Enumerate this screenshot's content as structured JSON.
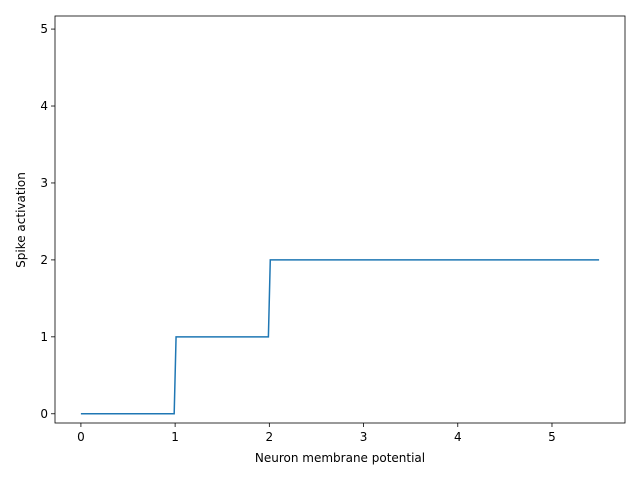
{
  "chart_data": {
    "type": "line",
    "x_label": "Neuron membrane potential",
    "y_label": "Spike activation",
    "x": [
      0,
      0.99,
      1.01,
      1.99,
      2.01,
      5.5
    ],
    "series": [
      {
        "color": "#1f77b4",
        "values": [
          0,
          0,
          1,
          1,
          2,
          2
        ]
      }
    ],
    "xlim": [
      -0.275,
      5.775
    ],
    "ylim": [
      -0.12,
      5.17
    ],
    "xticks": [
      0,
      1,
      2,
      3,
      4,
      5
    ],
    "yticks": [
      0,
      1,
      2,
      3,
      4,
      5
    ],
    "grid": false
  }
}
